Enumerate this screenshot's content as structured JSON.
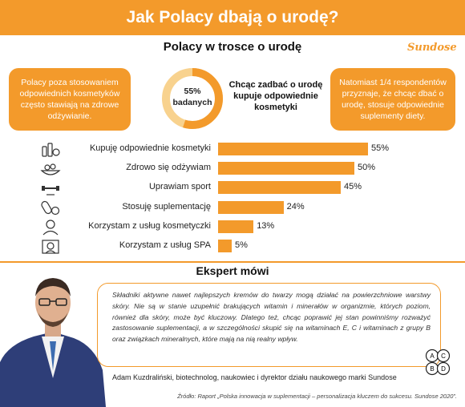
{
  "header": {
    "title": "Jak Polacy dbają o urodę?"
  },
  "subtitle": "Polacy w trosce o urodę",
  "brand": "Sundose",
  "callouts": {
    "left": "Polacy poza stosowaniem odpowiednich kosmetyków często stawiają na zdrowe odżywianie.",
    "right": "Natomiast 1/4 respondentów przyznaje, że chcąc dbać o urodę, stosuje odpowiednie suplementy diety."
  },
  "ring": {
    "value": 55,
    "label_line1": "55%",
    "label_line2": "badanych",
    "description": "Chcąc zadbać o urodę kupuje odpowiednie kosmetyki",
    "colors": {
      "fill": "#F39A2B",
      "track": "#F8D28E"
    }
  },
  "chart_data": {
    "type": "bar",
    "orientation": "horizontal",
    "categories": [
      "Kupuję odpowiednie kosmetyki",
      "Zdrowo się odżywiam",
      "Uprawiam sport",
      "Stosuję suplementację",
      "Korzystam z usług kosmetyczki",
      "Korzystam z usług SPA"
    ],
    "values": [
      55,
      50,
      45,
      24,
      13,
      5
    ],
    "value_labels": [
      "55%",
      "50%",
      "45%",
      "24%",
      "13%",
      "5%"
    ],
    "unit": "%",
    "xlim": [
      0,
      100
    ],
    "icons": [
      "cosmetics-icon",
      "healthy-food-icon",
      "sport-icon",
      "supplements-icon",
      "beautician-icon",
      "spa-icon"
    ],
    "bar_color": "#F39A2B"
  },
  "expert": {
    "title": "Ekspert mówi",
    "quote": "Składniki aktywne nawet najlepszych kremów do twarzy mogą działać na powierzchniowe warstwy skóry. Nie są w stanie uzupełnić brakujących witamin i minerałów w organizmie, których poziom, również dla skóry, może być kluczowy. Dlatego też, chcąc poprawić jej stan powinniśmy rozważyć zastosowanie suplementacji, a w szczególności skupić się na witaminach E, C i witaminach z grupy B oraz związkach mineralnych, które mają na nią realny wpływ.",
    "author": "Adam Kuzdraliński, biotechnolog, naukowiec i dyrektor działu naukowego marki Sundose",
    "vitamins": [
      "A",
      "C",
      "B",
      "D"
    ]
  },
  "source": "Źródło: Raport „Polska innowacja w suplementacji – personalizacja kluczem do sukcesu. Sundose 2020”."
}
